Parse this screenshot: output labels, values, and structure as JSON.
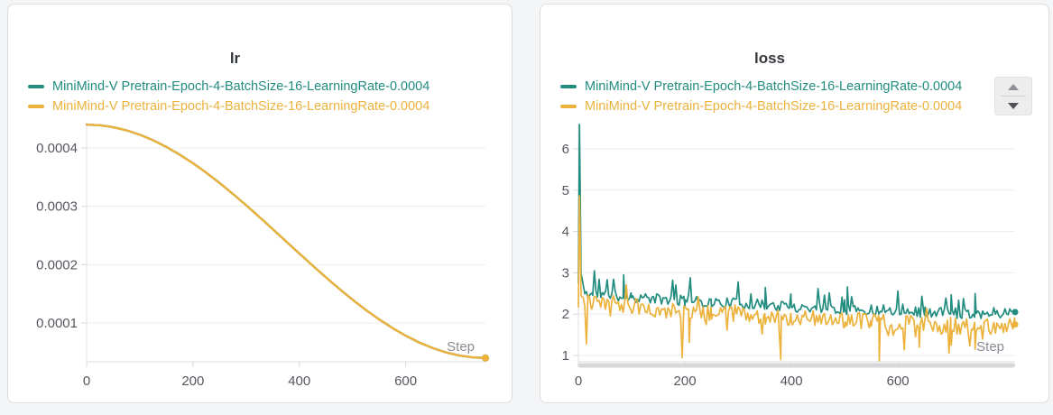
{
  "page": {
    "background": "#f4f5f6",
    "card_background": "#ffffff"
  },
  "colors": {
    "teal": "#228c7f",
    "gold": "#ecb23c",
    "title": "#33373c",
    "tick_label": "#56565f",
    "step_label": "#8c8c94",
    "gridline": "#ededf0",
    "axis_line": "#dcdce0"
  },
  "runs": [
    {
      "name": "MiniMind-V Pretrain-Epoch-4-BatchSize-16-LearningRate-0.0004",
      "color": "#228c7f"
    },
    {
      "name": "MiniMind-V Pretrain-Epoch-4-BatchSize-16-LearningRate-0.0004",
      "color": "#ecb23c"
    }
  ],
  "chart_data": [
    {
      "type": "line",
      "title": "lr",
      "xlabel": "Step",
      "xticks": [
        0,
        200,
        400,
        600
      ],
      "xtick_labels": [
        "0",
        "200",
        "400",
        "600"
      ],
      "yticks": [
        0.0001,
        0.0002,
        0.0003,
        0.0004
      ],
      "ytick_labels": [
        "0.0001",
        "0.0002",
        "0.0003",
        "0.0004"
      ],
      "xlim": [
        0,
        750
      ],
      "legend_position": "top-left",
      "grid": "horizontal",
      "end_dot": true,
      "series": [
        {
          "name": "MiniMind-V Pretrain-Epoch-4-BatchSize-16-LearningRate-0.0004",
          "color": "#228c7f",
          "x": [
            0,
            25,
            50,
            75,
            100,
            125,
            150,
            175,
            200,
            225,
            250,
            275,
            300,
            325,
            350,
            375,
            400,
            425,
            450,
            475,
            500,
            525,
            550,
            575,
            600,
            625,
            650,
            675,
            700,
            725,
            750
          ],
          "y": [
            0.00044,
            0.0004389,
            0.0004356,
            0.0004302,
            0.0004227,
            0.0004132,
            0.0004018,
            0.0003886,
            0.0003738,
            0.0003576,
            0.00034,
            0.0003213,
            0.0003018,
            0.0002816,
            0.0002609,
            0.00024,
            0.0002191,
            0.0001984,
            0.0001782,
            0.0001587,
            0.00014,
            0.0001224,
            0.0001062,
            9.14e-05,
            7.82e-05,
            6.68e-05,
            5.73e-05,
            4.98e-05,
            4.44e-05,
            4.11e-05,
            4e-05
          ]
        },
        {
          "name": "MiniMind-V Pretrain-Epoch-4-BatchSize-16-LearningRate-0.0004",
          "color": "#ecb23c",
          "x": [
            0,
            25,
            50,
            75,
            100,
            125,
            150,
            175,
            200,
            225,
            250,
            275,
            300,
            325,
            350,
            375,
            400,
            425,
            450,
            475,
            500,
            525,
            550,
            575,
            600,
            625,
            650,
            675,
            700,
            725,
            750
          ],
          "y": [
            0.00044,
            0.0004389,
            0.0004356,
            0.0004302,
            0.0004227,
            0.0004132,
            0.0004018,
            0.0003886,
            0.0003738,
            0.0003576,
            0.00034,
            0.0003213,
            0.0003018,
            0.0002816,
            0.0002609,
            0.00024,
            0.0002191,
            0.0001984,
            0.0001782,
            0.0001587,
            0.00014,
            0.0001224,
            0.0001062,
            9.14e-05,
            7.82e-05,
            6.68e-05,
            5.73e-05,
            4.98e-05,
            4.44e-05,
            4.11e-05,
            4e-05
          ]
        }
      ]
    },
    {
      "type": "line-noisy",
      "title": "loss",
      "xlabel": "Step",
      "xticks": [
        0,
        200,
        400,
        600
      ],
      "xtick_labels": [
        "0",
        "200",
        "400",
        "600"
      ],
      "yticks": [
        1,
        2,
        3,
        4,
        5,
        6
      ],
      "ytick_labels": [
        "1",
        "2",
        "3",
        "4",
        "5",
        "6"
      ],
      "xlim": [
        0,
        820
      ],
      "legend_position": "top-left",
      "legend_scroll": true,
      "grid": "horizontal",
      "bottom_scrollbar": true,
      "end_dot": true,
      "series": [
        {
          "name": "MiniMind-V Pretrain-Epoch-4-BatchSize-16-LearningRate-0.0004",
          "color": "#228c7f",
          "seed": 11,
          "trend_x": [
            0,
            2,
            5,
            12,
            25,
            50,
            100,
            150,
            200,
            250,
            300,
            350,
            400,
            450,
            500,
            550,
            600,
            650,
            700,
            750,
            820
          ],
          "trend_y": [
            2.75,
            6.58,
            3.0,
            2.5,
            2.48,
            2.45,
            2.42,
            2.36,
            2.32,
            2.28,
            2.26,
            2.22,
            2.18,
            2.15,
            2.12,
            2.1,
            2.08,
            2.05,
            2.03,
            2.02,
            2.05
          ],
          "noise_amp": 0.13,
          "spike_prob": 0.07,
          "spike_amp": 0.45,
          "spike_up_prob": 0.85,
          "marks": [
            [
              30,
              3.05
            ],
            [
              85,
              2.95
            ],
            [
              210,
              2.88
            ],
            [
              300,
              2.78
            ],
            [
              450,
              2.62
            ],
            [
              505,
              2.66
            ],
            [
              600,
              2.56
            ],
            [
              700,
              2.47
            ],
            [
              745,
              2.5
            ]
          ]
        },
        {
          "name": "MiniMind-V Pretrain-Epoch-4-BatchSize-16-LearningRate-0.0004",
          "color": "#ecb23c",
          "seed": 23,
          "trend_x": [
            0,
            2,
            5,
            12,
            25,
            50,
            100,
            150,
            200,
            250,
            300,
            350,
            400,
            450,
            500,
            550,
            600,
            650,
            700,
            750,
            820
          ],
          "trend_y": [
            2.3,
            4.88,
            2.5,
            2.28,
            2.26,
            2.24,
            2.2,
            2.12,
            2.06,
            2.02,
            2.0,
            1.96,
            1.92,
            1.88,
            1.86,
            1.82,
            1.78,
            1.76,
            1.72,
            1.7,
            1.75
          ],
          "noise_amp": 0.2,
          "spike_prob": 0.07,
          "spike_amp": 0.5,
          "spike_up_prob": 0.2,
          "marks": [
            [
              15,
              1.28
            ],
            [
              195,
              0.95
            ],
            [
              208,
              1.32
            ],
            [
              380,
              0.9
            ],
            [
              565,
              0.87
            ],
            [
              640,
              1.2
            ],
            [
              700,
              1.25
            ],
            [
              745,
              1.15
            ]
          ]
        }
      ]
    }
  ]
}
